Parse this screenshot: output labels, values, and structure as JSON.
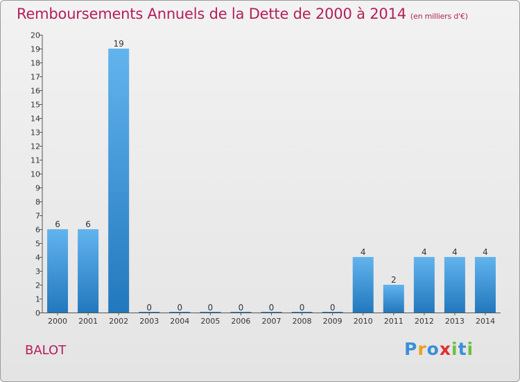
{
  "title": "Remboursements Annuels de la Dette de 2000 à 2014",
  "subtitle": "(en milliers d'€)",
  "commune": "BALOT",
  "logo": {
    "letters": [
      "P",
      "r",
      "o",
      "x",
      "i",
      "t",
      "i"
    ],
    "colors": [
      "#3a8fd8",
      "#e8a020",
      "#3a8fd8",
      "#e03030",
      "#6cc040",
      "#3a8fd8",
      "#6cc040"
    ]
  },
  "colors": {
    "title": "#b41e5a",
    "bar_light": "#62b4ee",
    "bar_dark": "#2278bd"
  },
  "chart_data": {
    "type": "bar",
    "categories": [
      "2000",
      "2001",
      "2002",
      "2003",
      "2004",
      "2005",
      "2006",
      "2007",
      "2008",
      "2009",
      "2010",
      "2011",
      "2012",
      "2013",
      "2014"
    ],
    "values": [
      6,
      6,
      19,
      0,
      0,
      0,
      0,
      0,
      0,
      0,
      4,
      2,
      4,
      4,
      4
    ],
    "ylim": [
      0,
      20
    ],
    "yticks": [
      0,
      1,
      2,
      3,
      4,
      5,
      6,
      7,
      8,
      9,
      10,
      11,
      12,
      13,
      14,
      15,
      16,
      17,
      18,
      19,
      20
    ],
    "title": "Remboursements Annuels de la Dette de 2000 à 2014",
    "xlabel": "",
    "ylabel": ""
  }
}
